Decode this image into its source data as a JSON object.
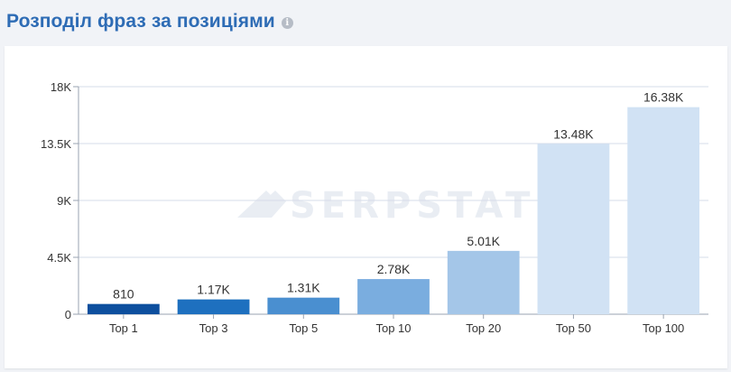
{
  "header": {
    "title": "Розподіл фраз за позиціями",
    "info_icon": "info-icon"
  },
  "watermark": "SERPSTAT",
  "chart_data": {
    "type": "bar",
    "categories": [
      "Top 1",
      "Top 3",
      "Top 5",
      "Top 10",
      "Top 20",
      "Top 50",
      "Top 100"
    ],
    "values": [
      810,
      1170,
      1310,
      2780,
      5010,
      13480,
      16380
    ],
    "value_labels": [
      "810",
      "1.17K",
      "1.31K",
      "2.78K",
      "5.01K",
      "13.48K",
      "16.38K"
    ],
    "colors": [
      "#0d4f9e",
      "#1e70bf",
      "#4a8fd0",
      "#7aaddf",
      "#a4c6e8",
      "#d1e2f4",
      "#d1e2f4"
    ],
    "yticks": [
      0,
      4500,
      9000,
      13500,
      18000
    ],
    "ytick_labels": [
      "0",
      "4.5K",
      "9K",
      "13.5K",
      "18K"
    ],
    "ylim": [
      0,
      18000
    ],
    "grid": true,
    "title": "",
    "xlabel": "",
    "ylabel": ""
  }
}
